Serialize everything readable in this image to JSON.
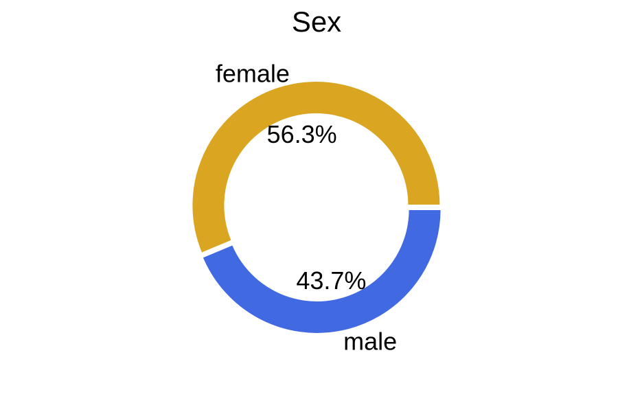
{
  "chart_data": {
    "type": "pie",
    "style": "donut",
    "title": "Sex",
    "slices": [
      {
        "label": "female",
        "value": 56.3,
        "pct_label": "56.3%",
        "color": "#DAA520"
      },
      {
        "label": "male",
        "value": 43.7,
        "pct_label": "43.7%",
        "color": "#4169E1"
      }
    ],
    "legend": "none"
  }
}
